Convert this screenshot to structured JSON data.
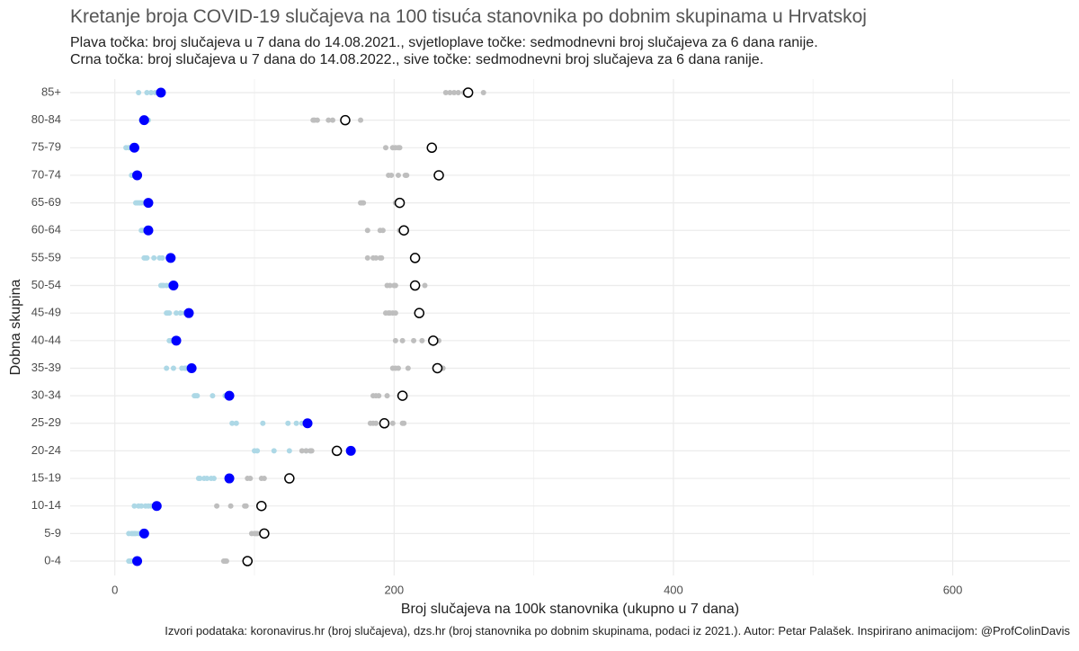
{
  "chart_data": {
    "type": "dotplot",
    "title": "Kretanje broja COVID-19 slučajeva na 100 tisuća stanovnika po dobnim skupinama u Hrvatskoj",
    "subtitle": [
      "Plava točka: broj slučajeva u 7 dana do 14.08.2021., svjetloplave točke: sedmodnevni broj slučajeva za 6 dana ranije.",
      "Crna točka: broj slučajeva u 7 dana do 14.08.2022., sive točke: sedmodnevni broj slučajeva za 6 dana ranije."
    ],
    "x_label": "Broj slučajeva na 100k stanovnika (ukupno u 7 dana)",
    "y_label": "Dobna skupina",
    "caption": "Izvori podataka: koronavirus.hr (broj slučajeva), dzs.hr (broj stanovnika po dobnim skupinama, podaci iz 2021.). Autor: Petar Palašek. Inspirirano animacijom: @ProfColinDavis",
    "categories": [
      "85+",
      "80-84",
      "75-79",
      "70-74",
      "65-69",
      "60-64",
      "55-59",
      "50-54",
      "45-49",
      "40-44",
      "35-39",
      "30-34",
      "25-29",
      "20-24",
      "15-19",
      "10-14",
      "5-9",
      "0-4"
    ],
    "xlim": [
      -32,
      684
    ],
    "xticks": [
      0,
      200,
      400,
      600
    ],
    "xminorticks": [
      100,
      300,
      500
    ],
    "grid": true,
    "series": [
      {
        "color": "#add8e6",
        "size": 3,
        "values": [
          [
            17,
            23,
            26,
            29,
            31,
            32
          ],
          [
            19,
            20,
            21,
            23,
            23,
            24
          ],
          [
            8,
            10,
            11,
            12,
            13,
            14
          ],
          [
            12,
            12,
            13,
            13,
            14,
            15
          ],
          [
            15,
            16,
            17,
            18,
            19,
            21
          ],
          [
            19,
            20,
            21,
            21,
            22,
            23
          ],
          [
            21,
            22,
            23,
            28,
            32,
            34
          ],
          [
            33,
            34,
            35,
            37,
            39,
            41
          ],
          [
            37,
            38,
            39,
            44,
            47,
            50
          ],
          [
            39,
            40,
            41,
            42,
            42,
            43
          ],
          [
            37,
            42,
            48,
            50,
            51,
            52
          ],
          [
            57,
            58,
            59,
            70,
            79,
            80
          ],
          [
            84,
            87,
            106,
            124,
            130,
            134
          ],
          [
            100,
            102,
            114,
            125,
            137,
            140
          ],
          [
            60,
            61,
            64,
            66,
            69,
            71
          ],
          [
            14,
            17,
            19,
            22,
            24,
            26
          ],
          [
            10,
            12,
            13,
            14,
            15,
            17
          ],
          [
            10,
            11,
            12,
            14,
            14,
            15
          ]
        ]
      },
      {
        "color": "#bebebe",
        "size": 3,
        "values": [
          [
            237,
            240,
            243,
            246,
            250,
            264
          ],
          [
            142,
            143,
            145,
            153,
            156,
            176
          ],
          [
            194,
            199,
            201,
            203,
            204,
            226
          ],
          [
            196,
            198,
            203,
            208,
            209,
            231
          ],
          [
            176,
            177,
            178,
            201,
            203,
            204
          ],
          [
            181,
            190,
            192,
            204,
            206,
            206
          ],
          [
            181,
            185,
            187,
            190,
            191,
            214
          ],
          [
            195,
            197,
            200,
            201,
            216,
            222
          ],
          [
            194,
            196,
            197,
            199,
            201,
            217
          ],
          [
            201,
            206,
            214,
            220,
            231,
            232
          ],
          [
            199,
            201,
            203,
            210,
            231,
            235
          ],
          [
            185,
            187,
            189,
            195,
            204,
            205
          ],
          [
            183,
            185,
            187,
            199,
            206,
            207
          ],
          [
            134,
            137,
            140,
            141,
            158,
            160
          ],
          [
            95,
            97,
            105,
            107,
            124,
            126
          ],
          [
            73,
            83,
            93,
            94,
            104,
            106
          ],
          [
            98,
            100,
            101,
            102,
            105,
            107
          ],
          [
            78,
            79,
            80,
            94,
            96,
            97
          ]
        ]
      },
      {
        "color": "#0000ff",
        "size": 5.5,
        "values": [
          33,
          21,
          14,
          16,
          24,
          24,
          40,
          42,
          53,
          44,
          55,
          82,
          138,
          169,
          82,
          30,
          21,
          16
        ]
      },
      {
        "color": "#000000",
        "size": 5,
        "values": [
          253,
          165,
          227,
          232,
          204,
          207,
          215,
          215,
          218,
          228,
          231,
          206,
          193,
          159,
          125,
          105,
          107,
          95
        ]
      }
    ]
  }
}
